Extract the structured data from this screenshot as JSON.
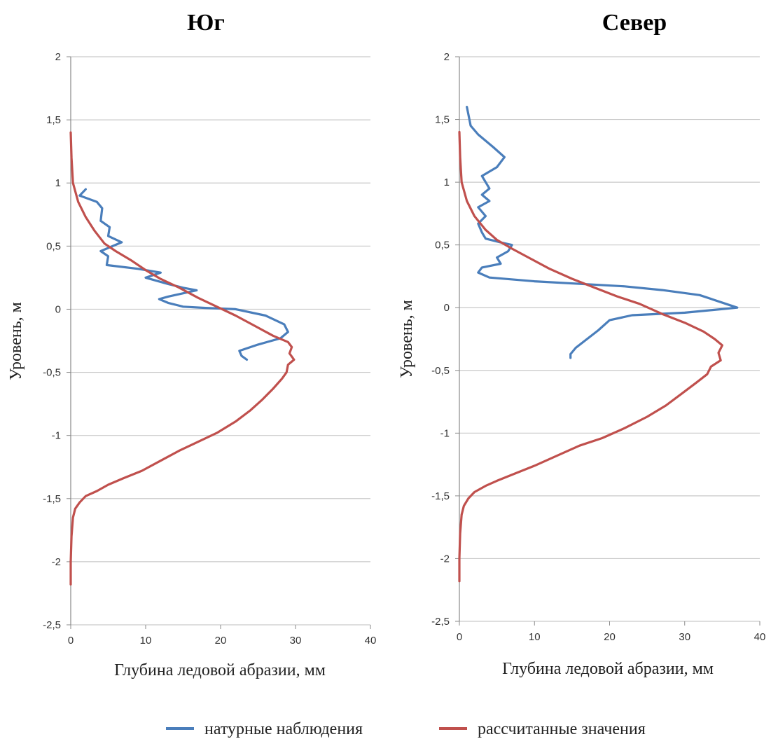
{
  "chart_data": [
    {
      "type": "line",
      "title": "Юг",
      "xlabel": "Глубина ледовой абразии, мм",
      "ylabel": "Уровень, м",
      "xlim": [
        0,
        40
      ],
      "ylim": [
        -2.5,
        2
      ],
      "x_ticks": [
        "0",
        "10",
        "20",
        "30",
        "40"
      ],
      "y_ticks": [
        "2",
        "1,5",
        "1",
        "0,5",
        "0",
        "-0,5",
        "-1",
        "-1,5",
        "-2",
        "-2,5"
      ],
      "grid": "horizontal",
      "series": [
        {
          "name": "натурные наблюдения",
          "color": "#4a7ebb",
          "points": [
            [
              2.0,
              0.95
            ],
            [
              1.2,
              0.9
            ],
            [
              3.5,
              0.85
            ],
            [
              4.2,
              0.8
            ],
            [
              4.0,
              0.7
            ],
            [
              5.2,
              0.65
            ],
            [
              5.0,
              0.58
            ],
            [
              6.8,
              0.53
            ],
            [
              4.0,
              0.46
            ],
            [
              5.0,
              0.42
            ],
            [
              4.8,
              0.35
            ],
            [
              9.0,
              0.32
            ],
            [
              12.0,
              0.29
            ],
            [
              10.0,
              0.25
            ],
            [
              13.0,
              0.2
            ],
            [
              15.0,
              0.17
            ],
            [
              16.8,
              0.15
            ],
            [
              13.0,
              0.1
            ],
            [
              11.8,
              0.08
            ],
            [
              13.0,
              0.05
            ],
            [
              15.0,
              0.02
            ],
            [
              18.0,
              0.01
            ],
            [
              22.0,
              0.0
            ],
            [
              26.0,
              -0.05
            ],
            [
              28.5,
              -0.12
            ],
            [
              29.0,
              -0.18
            ],
            [
              28.0,
              -0.23
            ],
            [
              25.0,
              -0.28
            ],
            [
              22.5,
              -0.33
            ],
            [
              22.8,
              -0.37
            ],
            [
              23.5,
              -0.4
            ]
          ]
        },
        {
          "name": "рассчитанные значения",
          "color": "#c0504d",
          "points": [
            [
              0.0,
              1.4
            ],
            [
              0.1,
              1.2
            ],
            [
              0.3,
              1.0
            ],
            [
              1.0,
              0.85
            ],
            [
              2.0,
              0.73
            ],
            [
              3.2,
              0.62
            ],
            [
              4.5,
              0.52
            ],
            [
              6.0,
              0.46
            ],
            [
              8.0,
              0.39
            ],
            [
              10.0,
              0.31
            ],
            [
              12.0,
              0.24
            ],
            [
              14.5,
              0.17
            ],
            [
              17.0,
              0.09
            ],
            [
              19.5,
              0.02
            ],
            [
              22.0,
              -0.05
            ],
            [
              24.5,
              -0.13
            ],
            [
              27.0,
              -0.21
            ],
            [
              29.0,
              -0.26
            ],
            [
              29.5,
              -0.3
            ],
            [
              29.2,
              -0.35
            ],
            [
              29.8,
              -0.4
            ],
            [
              29.0,
              -0.44
            ],
            [
              28.8,
              -0.5
            ],
            [
              28.2,
              -0.55
            ],
            [
              27.0,
              -0.63
            ],
            [
              25.5,
              -0.72
            ],
            [
              24.0,
              -0.8
            ],
            [
              22.0,
              -0.89
            ],
            [
              19.5,
              -0.98
            ],
            [
              17.0,
              -1.05
            ],
            [
              14.5,
              -1.12
            ],
            [
              12.0,
              -1.2
            ],
            [
              9.5,
              -1.28
            ],
            [
              7.0,
              -1.34
            ],
            [
              5.0,
              -1.39
            ],
            [
              3.5,
              -1.44
            ],
            [
              2.0,
              -1.48
            ],
            [
              1.2,
              -1.53
            ],
            [
              0.6,
              -1.58
            ],
            [
              0.3,
              -1.65
            ],
            [
              0.1,
              -1.8
            ],
            [
              0.0,
              -2.0
            ],
            [
              0.0,
              -2.18
            ]
          ]
        }
      ]
    },
    {
      "type": "line",
      "title": "Север",
      "xlabel": "Глубина ледовой абразии, мм",
      "ylabel": "Уровень, м",
      "xlim": [
        0,
        40
      ],
      "ylim": [
        -2.5,
        2
      ],
      "x_ticks": [
        "0",
        "10",
        "20",
        "30",
        "40"
      ],
      "y_ticks": [
        "2",
        "1,5",
        "1",
        "0,5",
        "0",
        "-0,5",
        "-1",
        "-1,5",
        "-2",
        "-2,5"
      ],
      "grid": "horizontal",
      "series": [
        {
          "name": "натурные наблюдения",
          "color": "#4a7ebb",
          "points": [
            [
              1.0,
              1.6
            ],
            [
              1.5,
              1.45
            ],
            [
              2.5,
              1.38
            ],
            [
              4.5,
              1.28
            ],
            [
              6.0,
              1.2
            ],
            [
              5.0,
              1.12
            ],
            [
              3.0,
              1.05
            ],
            [
              4.0,
              0.95
            ],
            [
              3.0,
              0.9
            ],
            [
              4.0,
              0.85
            ],
            [
              2.5,
              0.8
            ],
            [
              3.5,
              0.73
            ],
            [
              2.5,
              0.67
            ],
            [
              3.0,
              0.6
            ],
            [
              3.5,
              0.55
            ],
            [
              5.5,
              0.52
            ],
            [
              7.0,
              0.5
            ],
            [
              6.5,
              0.45
            ],
            [
              5.0,
              0.4
            ],
            [
              5.5,
              0.35
            ],
            [
              3.0,
              0.32
            ],
            [
              2.5,
              0.28
            ],
            [
              4.0,
              0.24
            ],
            [
              10.0,
              0.21
            ],
            [
              16.0,
              0.19
            ],
            [
              22.0,
              0.17
            ],
            [
              27.0,
              0.14
            ],
            [
              32.0,
              0.1
            ],
            [
              35.5,
              0.03
            ],
            [
              37.0,
              0.0
            ],
            [
              30.0,
              -0.04
            ],
            [
              23.0,
              -0.06
            ],
            [
              20.0,
              -0.1
            ],
            [
              18.5,
              -0.18
            ],
            [
              17.0,
              -0.25
            ],
            [
              15.5,
              -0.32
            ],
            [
              14.8,
              -0.37
            ],
            [
              14.8,
              -0.4
            ]
          ]
        },
        {
          "name": "рассчитанные значения",
          "color": "#c0504d",
          "points": [
            [
              0.0,
              1.4
            ],
            [
              0.1,
              1.2
            ],
            [
              0.3,
              1.0
            ],
            [
              1.0,
              0.85
            ],
            [
              2.0,
              0.73
            ],
            [
              3.5,
              0.62
            ],
            [
              5.0,
              0.54
            ],
            [
              7.0,
              0.47
            ],
            [
              9.5,
              0.39
            ],
            [
              12.0,
              0.31
            ],
            [
              15.0,
              0.23
            ],
            [
              18.0,
              0.16
            ],
            [
              21.0,
              0.09
            ],
            [
              24.0,
              0.03
            ],
            [
              27.0,
              -0.05
            ],
            [
              30.0,
              -0.12
            ],
            [
              32.5,
              -0.19
            ],
            [
              34.0,
              -0.25
            ],
            [
              35.0,
              -0.3
            ],
            [
              34.5,
              -0.36
            ],
            [
              34.8,
              -0.42
            ],
            [
              33.5,
              -0.47
            ],
            [
              33.0,
              -0.53
            ],
            [
              31.5,
              -0.6
            ],
            [
              29.5,
              -0.69
            ],
            [
              27.5,
              -0.78
            ],
            [
              25.0,
              -0.87
            ],
            [
              22.0,
              -0.96
            ],
            [
              19.0,
              -1.04
            ],
            [
              16.0,
              -1.1
            ],
            [
              13.0,
              -1.18
            ],
            [
              10.0,
              -1.26
            ],
            [
              7.5,
              -1.32
            ],
            [
              5.0,
              -1.38
            ],
            [
              3.5,
              -1.42
            ],
            [
              2.0,
              -1.47
            ],
            [
              1.2,
              -1.52
            ],
            [
              0.6,
              -1.58
            ],
            [
              0.3,
              -1.65
            ],
            [
              0.1,
              -1.8
            ],
            [
              0.0,
              -2.0
            ],
            [
              0.0,
              -2.18
            ]
          ]
        }
      ]
    }
  ],
  "legend": [
    {
      "label": "натурные наблюдения",
      "color": "#4a7ebb"
    },
    {
      "label": "рассчитанные значения",
      "color": "#c0504d"
    }
  ]
}
